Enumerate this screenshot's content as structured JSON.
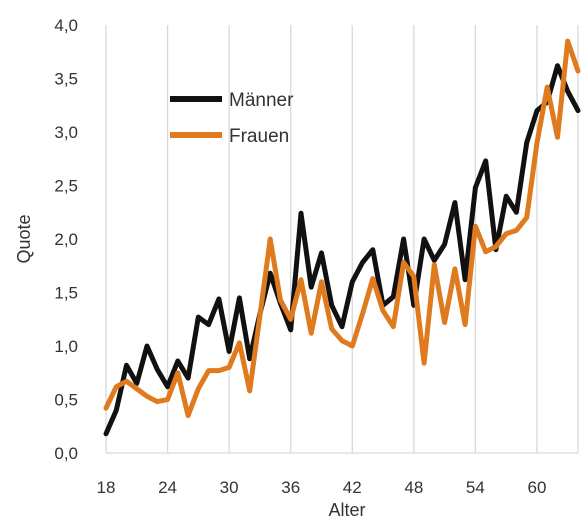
{
  "chart_data": {
    "type": "line",
    "xlabel": "Alter",
    "ylabel": "Quote",
    "xlim": [
      18,
      64
    ],
    "ylim": [
      0,
      4
    ],
    "x_ticks": [
      18,
      24,
      30,
      36,
      42,
      48,
      54,
      60
    ],
    "y_ticks": [
      0,
      0.5,
      1,
      1.5,
      2,
      2.5,
      3,
      3.5,
      4
    ],
    "y_tick_labels": [
      "0,0",
      "0,5",
      "1,0",
      "1,5",
      "2,0",
      "2,5",
      "3,0",
      "3,5",
      "4,0"
    ],
    "grid": "vertical",
    "legend_position": "top-left",
    "x": [
      18,
      19,
      20,
      21,
      22,
      23,
      24,
      25,
      26,
      27,
      28,
      29,
      30,
      31,
      32,
      33,
      34,
      35,
      36,
      37,
      38,
      39,
      40,
      41,
      42,
      43,
      44,
      45,
      46,
      47,
      48,
      49,
      50,
      51,
      52,
      53,
      54,
      55,
      56,
      57,
      58,
      59,
      60,
      61,
      62,
      63,
      64
    ],
    "series": [
      {
        "name": "Männer",
        "color": "#111111",
        "values": [
          0.18,
          0.4,
          0.82,
          0.65,
          1.0,
          0.78,
          0.62,
          0.86,
          0.7,
          1.27,
          1.2,
          1.44,
          0.95,
          1.45,
          0.88,
          1.3,
          1.68,
          1.4,
          1.15,
          2.24,
          1.55,
          1.87,
          1.38,
          1.18,
          1.6,
          1.78,
          1.9,
          1.38,
          1.46,
          2.0,
          1.38,
          2.0,
          1.8,
          1.95,
          2.34,
          1.62,
          2.48,
          2.73,
          1.9,
          2.4,
          2.25,
          2.9,
          3.2,
          3.28,
          3.62,
          3.38,
          3.2
        ]
      },
      {
        "name": "Frauen",
        "color": "#e07a1f",
        "values": [
          0.42,
          0.62,
          0.67,
          0.6,
          0.53,
          0.48,
          0.5,
          0.75,
          0.35,
          0.6,
          0.77,
          0.77,
          0.8,
          1.03,
          0.58,
          1.28,
          2.0,
          1.43,
          1.25,
          1.62,
          1.12,
          1.6,
          1.16,
          1.05,
          1.0,
          1.3,
          1.63,
          1.33,
          1.18,
          1.78,
          1.65,
          0.84,
          1.76,
          1.22,
          1.72,
          1.2,
          2.12,
          1.88,
          1.93,
          2.05,
          2.08,
          2.2,
          2.9,
          3.42,
          2.95,
          3.85,
          3.57
        ]
      }
    ]
  }
}
